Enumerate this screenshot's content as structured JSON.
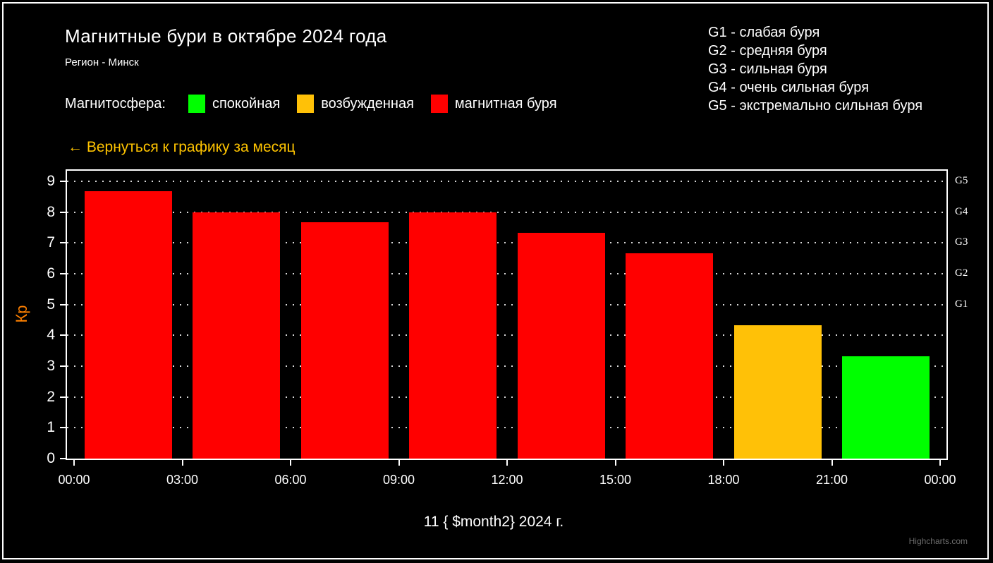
{
  "title": "Магнитные бури в октябре 2024 года",
  "subtitle": "Регион - Минск",
  "legend": {
    "label": "Магнитосфера:",
    "items": [
      {
        "label": "спокойная",
        "color": "#00FF00"
      },
      {
        "label": "возбужденная",
        "color": "#FFC107"
      },
      {
        "label": "магнитная буря",
        "color": "#FF0000"
      }
    ]
  },
  "storm_scale": [
    "G1 - слабая буря",
    "G2 - средняя буря",
    "G3 - сильная буря",
    "G4 - очень сильная буря",
    "G5 - экстремально сильная буря"
  ],
  "back_link": {
    "text": "← Вернуться к графику за месяц"
  },
  "credits": "Highcharts.com",
  "colors": {
    "background": "#000000",
    "text": "#FFFFFF",
    "axis": "#FFFFFF",
    "y_axis_title": "#FF8000",
    "back_link": "#FFC400",
    "credits": "#6E6E6E",
    "quiet": "#00FF00",
    "excited": "#FFC107",
    "storm": "#FF0000"
  },
  "chart_data": {
    "type": "bar",
    "title": "Магнитные бури в октябре 2024 года",
    "subtitle": "Регион - Минск",
    "xlabel": "11 { $month2} 2024 г.",
    "ylabel": "Кр",
    "ylim": [
      0,
      9.34
    ],
    "yticks": [
      0,
      1,
      2,
      3,
      4,
      5,
      6,
      7,
      8,
      9
    ],
    "x_tick_labels": [
      "00:00",
      "03:00",
      "06:00",
      "09:00",
      "12:00",
      "15:00",
      "18:00",
      "21:00",
      "00:00"
    ],
    "grid": "horizontal dotted, white on black",
    "legend_position": "top-left",
    "right_axis_labels": [
      {
        "label": "G1",
        "value": 5
      },
      {
        "label": "G2",
        "value": 6
      },
      {
        "label": "G3",
        "value": 7
      },
      {
        "label": "G4",
        "value": 8
      },
      {
        "label": "G5",
        "value": 9
      }
    ],
    "points": [
      {
        "slot": "00:00-03:00",
        "value": 8.67,
        "color": "#FF0000",
        "status": "магнитная буря"
      },
      {
        "slot": "03:00-06:00",
        "value": 8.0,
        "color": "#FF0000",
        "status": "магнитная буря"
      },
      {
        "slot": "06:00-09:00",
        "value": 7.67,
        "color": "#FF0000",
        "status": "магнитная буря"
      },
      {
        "slot": "09:00-12:00",
        "value": 8.0,
        "color": "#FF0000",
        "status": "магнитная буря"
      },
      {
        "slot": "12:00-15:00",
        "value": 7.33,
        "color": "#FF0000",
        "status": "магнитная буря"
      },
      {
        "slot": "15:00-18:00",
        "value": 6.67,
        "color": "#FF0000",
        "status": "магнитная буря"
      },
      {
        "slot": "18:00-21:00",
        "value": 4.33,
        "color": "#FFC107",
        "status": "возбужденная"
      },
      {
        "slot": "21:00-00:00",
        "value": 3.33,
        "color": "#00FF00",
        "status": "спокойная"
      }
    ]
  }
}
